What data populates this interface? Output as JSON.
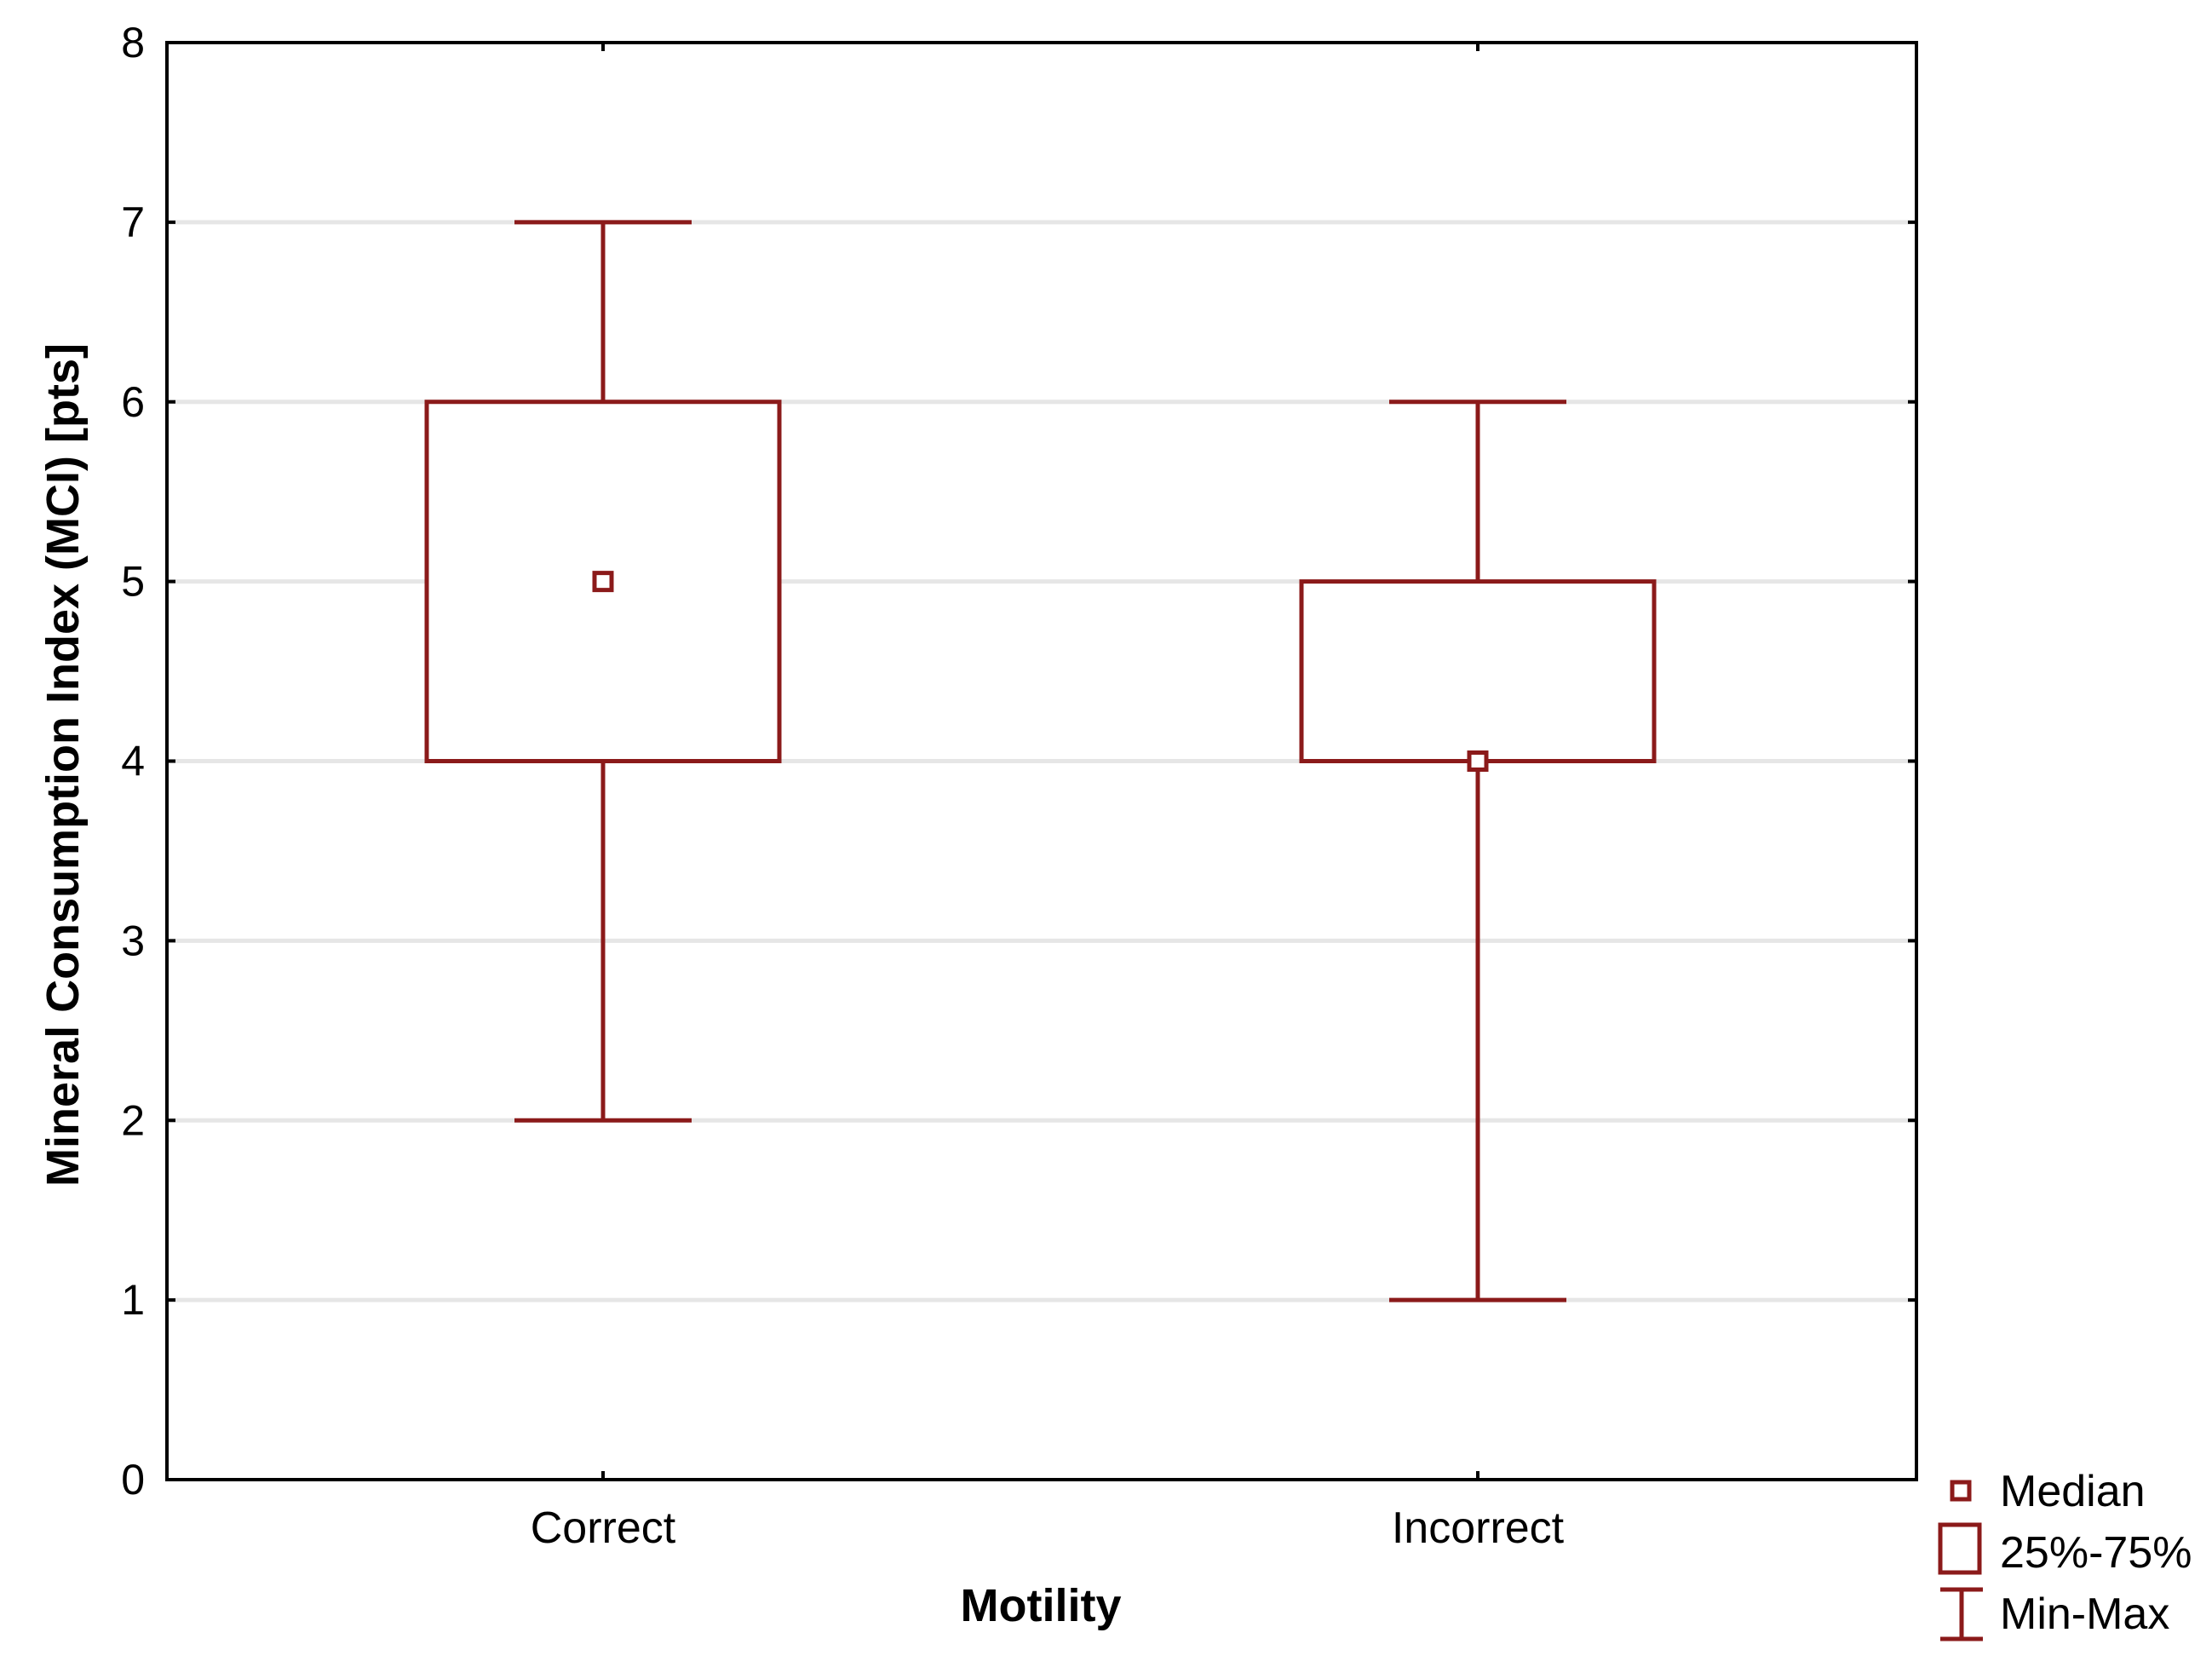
{
  "colors": {
    "series": "#8B1A1A",
    "grid": "#e6e6e6",
    "axis": "#000000",
    "background": "#ffffff"
  },
  "chart_data": {
    "type": "boxplot",
    "title": "",
    "xlabel": "Motility",
    "ylabel": "Mineral Consumption Index (MCI) [pts]",
    "ylim": [
      0,
      8
    ],
    "yticks": [
      "0",
      "1",
      "2",
      "3",
      "4",
      "5",
      "6",
      "7",
      "8"
    ],
    "grid": "horizontal",
    "categories": [
      "Correct",
      "Incorrect"
    ],
    "boxes": [
      {
        "category": "Correct",
        "min": 2,
        "q1": 4,
        "median": 5,
        "q3": 6,
        "max": 7
      },
      {
        "category": "Incorrect",
        "min": 1,
        "q1": 4,
        "median": 4,
        "q3": 5,
        "max": 6
      }
    ],
    "legend": {
      "position": "bottom-right, outside plot",
      "entries": [
        {
          "symbol": "median",
          "label": "Median"
        },
        {
          "symbol": "box",
          "label": "25%-75%"
        },
        {
          "symbol": "whisker",
          "label": "Min-Max"
        }
      ]
    }
  }
}
